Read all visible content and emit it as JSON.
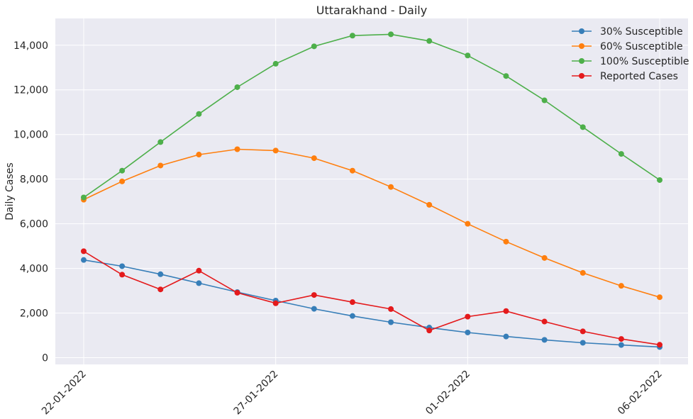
{
  "chart_data": {
    "type": "line",
    "title": "Uttarakhand - Daily",
    "xlabel": "",
    "ylabel": "Daily Cases",
    "x": [
      "22-01-2022",
      "23-01-2022",
      "24-01-2022",
      "25-01-2022",
      "26-01-2022",
      "27-01-2022",
      "28-01-2022",
      "29-01-2022",
      "30-01-2022",
      "31-01-2022",
      "01-02-2022",
      "02-02-2022",
      "03-02-2022",
      "04-02-2022",
      "05-02-2022",
      "06-02-2022"
    ],
    "xticks": [
      "22-01-2022",
      "27-01-2022",
      "01-02-2022",
      "06-02-2022"
    ],
    "ylim": [
      -300,
      15200
    ],
    "yticks": [
      0,
      2000,
      4000,
      6000,
      8000,
      10000,
      12000,
      14000
    ],
    "ytick_labels": [
      "0",
      "2,000",
      "4,000",
      "6,000",
      "8,000",
      "10,000",
      "12,000",
      "14,000"
    ],
    "grid": true,
    "legend_position": "top-right",
    "series": [
      {
        "name": "30% Susceptible",
        "color": "#377eb8",
        "values": [
          4380,
          4100,
          3740,
          3340,
          2940,
          2560,
          2190,
          1870,
          1590,
          1350,
          1130,
          950,
          800,
          670,
          570,
          480
        ]
      },
      {
        "name": "60% Susceptible",
        "color": "#ff7f0e",
        "values": [
          7080,
          7900,
          8610,
          9100,
          9340,
          9280,
          8940,
          8380,
          7650,
          6850,
          6000,
          5200,
          4470,
          3800,
          3220,
          2710
        ]
      },
      {
        "name": "100% Susceptible",
        "color": "#4daf4a",
        "values": [
          7180,
          8380,
          9660,
          10920,
          12120,
          13170,
          13950,
          14430,
          14490,
          14190,
          13540,
          12620,
          11530,
          10330,
          9130,
          7960
        ]
      },
      {
        "name": "Reported Cases",
        "color": "#e41a1c",
        "values": [
          4770,
          3720,
          3060,
          3900,
          2910,
          2440,
          2810,
          2490,
          2180,
          1220,
          1840,
          2090,
          1620,
          1180,
          840,
          580
        ]
      }
    ]
  }
}
